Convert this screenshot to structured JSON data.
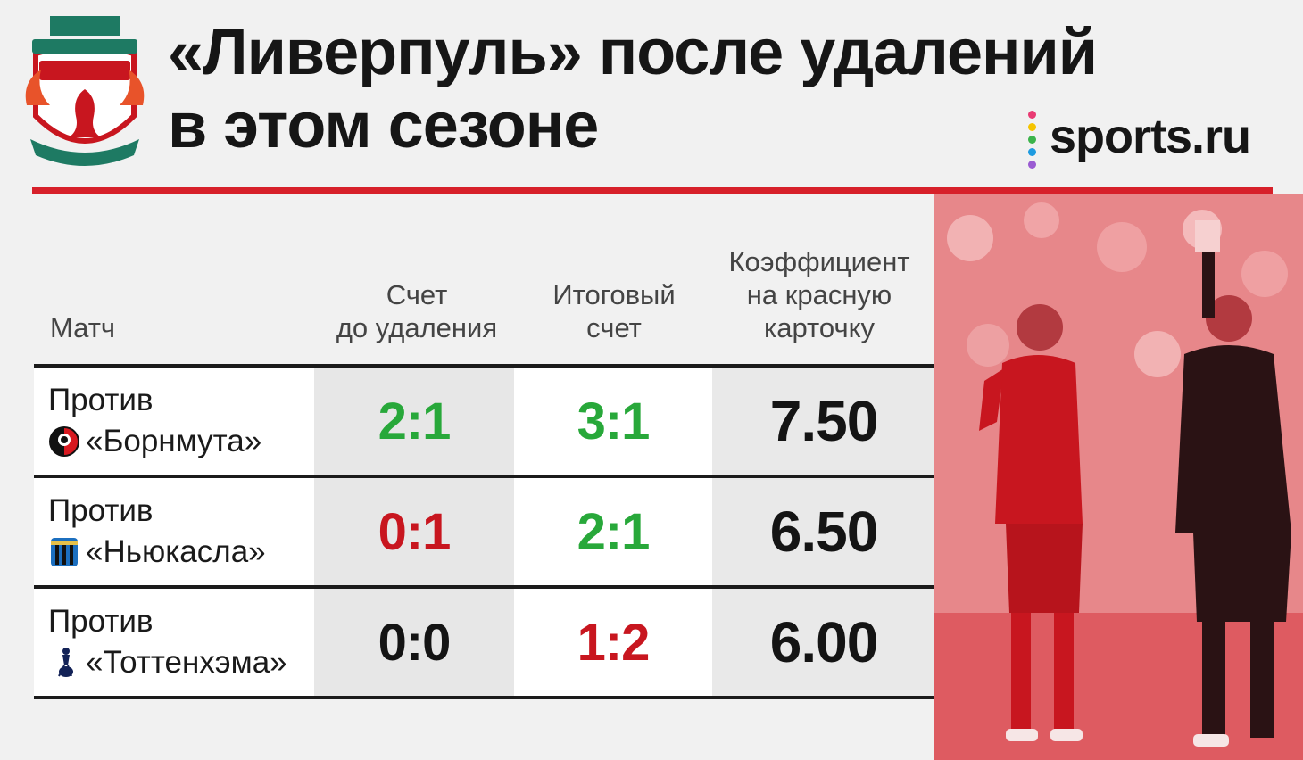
{
  "header": {
    "title_line1": "«Ливерпуль» после удалений",
    "title_line2": "в этом сезоне",
    "crest_icon": "liverpool-crest-icon",
    "brand": "sports.ru",
    "brand_dot_colors": [
      "#e93b73",
      "#f5c400",
      "#3cb44b",
      "#1e9be0",
      "#9a5bd2"
    ]
  },
  "colors": {
    "accent_red": "#d7202a",
    "score_green": "#28a83a",
    "score_red": "#c8161f",
    "score_neutral": "#141414"
  },
  "table": {
    "headers": {
      "match": "Матч",
      "before_line1": "Счет",
      "before_line2": "до удаления",
      "final_line1": "Итоговый",
      "final_line2": "счет",
      "odds_line1": "Коэффициент",
      "odds_line2": "на красную",
      "odds_line3": "карточку"
    },
    "rows": [
      {
        "prefix": "Против",
        "opponent": "«Борнмута»",
        "icon": "bournemouth-crest-icon",
        "before": "2:1",
        "before_status": "green",
        "final": "3:1",
        "final_status": "green",
        "odds": "7.50"
      },
      {
        "prefix": "Против",
        "opponent": "«Ньюкасла»",
        "icon": "newcastle-crest-icon",
        "before": "0:1",
        "before_status": "red",
        "final": "2:1",
        "final_status": "green",
        "odds": "6.50"
      },
      {
        "prefix": "Против",
        "opponent": "«Тоттенхэма»",
        "icon": "tottenham-crest-icon",
        "before": "0:0",
        "before_status": "neutral",
        "final": "1:2",
        "final_status": "red",
        "odds": "6.00"
      }
    ]
  },
  "photo": {
    "icon": "red-card-photo-icon"
  }
}
